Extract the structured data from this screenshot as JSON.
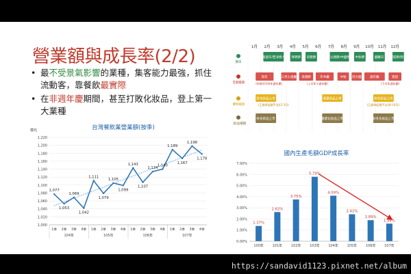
{
  "slide": {
    "title": "營業額與成長率(2/2)",
    "bullets": [
      {
        "pre": "最",
        "green": "不受景氣影響",
        "mid": "的業種，集客能力最強，抓住流動客，靠餐飲",
        "red": "最實際",
        "post": ""
      },
      {
        "pre": "在",
        "red": "非週年慶",
        "mid": "期間，甚至打敗化妝品，登上第一大業種",
        "green": "",
        "post": ""
      }
    ]
  },
  "timeline": {
    "months": [
      "1月",
      "2月",
      "3月",
      "4月",
      "5月",
      "6月",
      "7月",
      "8月",
      "9月",
      "10月",
      "11月",
      "12月"
    ],
    "rows": [
      {
        "label": "節日",
        "color": "#2e8b57"
      },
      {
        "label": "百貨檔期",
        "color": "#c0392b"
      },
      {
        "label": "購物檔期",
        "color": "#d4a017"
      },
      {
        "label": "化妝品檔期",
        "color": "#7a6a3a"
      }
    ],
    "holidays": [
      {
        "text": "農曆過年/西洋情人節",
        "m": 1.2,
        "w": 1.6
      },
      {
        "text": "清明節",
        "m": 3.3,
        "w": 0.9
      },
      {
        "text": "母親節",
        "m": 4.5,
        "w": 0.9
      },
      {
        "text": "春假/父親節/中國情人節",
        "m": 6.4,
        "w": 1.5
      },
      {
        "text": "中秋節",
        "m": 8.3,
        "w": 0.9
      },
      {
        "text": "國慶日",
        "m": 9.8,
        "w": 0.9
      },
      {
        "text": "聖誕節/跨年",
        "m": 11.3,
        "w": 0.9
      }
    ],
    "dept": [
      {
        "text": "新年",
        "m": 0.6,
        "w": 1.4
      },
      {
        "text": "三月小週慶",
        "m": 2.6,
        "w": 1.2
      },
      {
        "text": "母親節",
        "m": 4.0,
        "w": 1.1
      },
      {
        "text": "年中慶",
        "m": 5.3,
        "w": 1.4
      },
      {
        "text": "中秋",
        "m": 7.0,
        "w": 0.9
      },
      {
        "text": "八月大檔期",
        "m": 8.1,
        "w": 0.8
      },
      {
        "text": "週年慶",
        "m": 9.1,
        "w": 1.6
      },
      {
        "text": "聖誕",
        "m": 11.0,
        "w": 1.0
      }
    ],
    "dept_notes": [
      {
        "text": "(年終2019)年週年慶)",
        "m": 0.6
      },
      {
        "text": "(上半年小週年慶)",
        "m": 4.6
      },
      {
        "text": "(下半年週年慶)",
        "m": 10.4
      }
    ],
    "shop": [
      {
        "text": "秋冬新品上市",
        "m": 0.6,
        "w": 1.6
      },
      {
        "text": "春夏新品上市",
        "m": 5.8,
        "w": 1.6
      },
      {
        "text": "秋冬新品上市",
        "m": 9.8,
        "w": 1.6
      }
    ],
    "shop_notes": [
      {
        "text": "(乙換季促銷手法)(2-3月)",
        "m": 0.8
      },
      {
        "text": "(乙換季促銷手法)(8-10月)",
        "m": 9.3
      }
    ],
    "cosme": [
      {
        "text": "秋冬新品上市",
        "m": 0.6,
        "w": 1.6
      },
      {
        "text": "春夏化妝品上市",
        "m": 5.8,
        "w": 1.6
      },
      {
        "text": "秋冬化妝品上市",
        "m": 9.8,
        "w": 1.6
      }
    ]
  },
  "chart_data": [
    {
      "type": "line",
      "title": "台灣餐飲業營業額(按季)",
      "ylabel": "億元",
      "ylim": [
        1000,
        1220
      ],
      "yticks": [
        "1,000",
        "1,020",
        "1,040",
        "1,060",
        "1,080",
        "1,100",
        "1,120",
        "1,140",
        "1,160",
        "1,180",
        "1,200",
        "1,220"
      ],
      "categories": [
        "1季",
        "2季",
        "3季",
        "4季",
        "1季",
        "2季",
        "3季",
        "4季",
        "1季",
        "2季",
        "3季",
        "4季",
        "1季",
        "2季",
        "3季",
        "4季"
      ],
      "groups": [
        "104年",
        "105年",
        "106年",
        "107年"
      ],
      "values": [
        1077,
        1053,
        1069,
        1042,
        1111,
        1079,
        1105,
        1099,
        1143,
        1107,
        1134,
        1140,
        1189,
        1167,
        1198,
        1178
      ],
      "trendline": true,
      "color": "#2e75b6"
    },
    {
      "type": "bar",
      "title": "國內生產毛額GDP成長率",
      "ylim": [
        0,
        7
      ],
      "yticks": [
        "0.00%",
        "1.00%",
        "2.00%",
        "3.00%",
        "4.00%",
        "5.00%",
        "6.00%",
        "7.00%"
      ],
      "categories": [
        "100年",
        "101年",
        "102年",
        "103年",
        "104年",
        "105年",
        "106年",
        "107年"
      ],
      "values": [
        1.37,
        2.62,
        3.75,
        5.79,
        4.09,
        2.42,
        1.89,
        1.58
      ],
      "labels": [
        "1.37%",
        "2.62%",
        "3.75%",
        "5.79%",
        "4.09%",
        "2.42%",
        "1.89%",
        "1.58%"
      ],
      "color": "#2e75b6",
      "arrow_color": "#e02020"
    }
  ],
  "footer": {
    "url": "https://sandavid1123.pixnet.net/album"
  }
}
